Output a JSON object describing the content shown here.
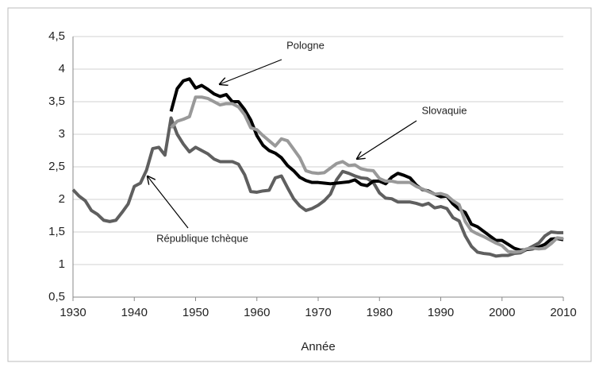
{
  "chart_data": {
    "type": "line",
    "xlabel": "Année",
    "x": [
      1930,
      1931,
      1932,
      1933,
      1934,
      1935,
      1936,
      1937,
      1938,
      1939,
      1940,
      1941,
      1942,
      1943,
      1944,
      1945,
      1946,
      1947,
      1948,
      1949,
      1950,
      1951,
      1952,
      1953,
      1954,
      1955,
      1956,
      1957,
      1958,
      1959,
      1960,
      1961,
      1962,
      1963,
      1964,
      1965,
      1966,
      1967,
      1968,
      1969,
      1970,
      1971,
      1972,
      1973,
      1974,
      1975,
      1976,
      1977,
      1978,
      1979,
      1980,
      1981,
      1982,
      1983,
      1984,
      1985,
      1986,
      1987,
      1988,
      1989,
      1990,
      1991,
      1992,
      1993,
      1994,
      1995,
      1996,
      1997,
      1998,
      1999,
      2000,
      2001,
      2002,
      2003,
      2004,
      2005,
      2006,
      2007,
      2008,
      2009,
      2010
    ],
    "series": [
      {
        "name": "République tchèque",
        "color": "#5f5f5f",
        "values": [
          2.15,
          2.05,
          1.98,
          1.83,
          1.77,
          1.68,
          1.66,
          1.68,
          1.8,
          1.93,
          2.2,
          2.25,
          2.45,
          2.78,
          2.8,
          2.68,
          3.25,
          3.0,
          2.85,
          2.73,
          2.8,
          2.75,
          2.7,
          2.62,
          2.58,
          2.58,
          2.58,
          2.54,
          2.38,
          2.12,
          2.11,
          2.13,
          2.14,
          2.33,
          2.36,
          2.18,
          2.01,
          1.9,
          1.83,
          1.86,
          1.91,
          1.98,
          2.08,
          2.3,
          2.43,
          2.4,
          2.36,
          2.33,
          2.32,
          2.26,
          2.1,
          2.02,
          2.01,
          1.96,
          1.96,
          1.96,
          1.94,
          1.91,
          1.94,
          1.87,
          1.89,
          1.86,
          1.72,
          1.67,
          1.44,
          1.28,
          1.19,
          1.17,
          1.16,
          1.13,
          1.14,
          1.14,
          1.17,
          1.18,
          1.23,
          1.28,
          1.33,
          1.44,
          1.5,
          1.49,
          1.49
        ]
      },
      {
        "name": "Pologne",
        "color": "#000000",
        "values": [
          null,
          null,
          null,
          null,
          null,
          null,
          null,
          null,
          null,
          null,
          null,
          null,
          null,
          null,
          null,
          null,
          3.35,
          3.7,
          3.82,
          3.85,
          3.71,
          3.75,
          3.69,
          3.62,
          3.58,
          3.61,
          3.5,
          3.5,
          3.38,
          3.22,
          2.98,
          2.83,
          2.75,
          2.71,
          2.64,
          2.52,
          2.44,
          2.34,
          2.29,
          2.26,
          2.26,
          2.25,
          2.24,
          2.25,
          2.26,
          2.27,
          2.3,
          2.23,
          2.21,
          2.28,
          2.28,
          2.24,
          2.34,
          2.4,
          2.37,
          2.33,
          2.22,
          2.15,
          2.13,
          2.08,
          2.04,
          2.05,
          1.93,
          1.85,
          1.8,
          1.62,
          1.58,
          1.51,
          1.44,
          1.37,
          1.37,
          1.31,
          1.25,
          1.22,
          1.23,
          1.24,
          1.27,
          1.31,
          1.39,
          1.4,
          1.38
        ]
      },
      {
        "name": "Slovaquie",
        "color": "#999999",
        "values": [
          null,
          null,
          null,
          null,
          null,
          null,
          null,
          null,
          null,
          null,
          null,
          null,
          null,
          null,
          null,
          null,
          3.1,
          3.2,
          3.23,
          3.27,
          3.57,
          3.57,
          3.55,
          3.5,
          3.45,
          3.47,
          3.47,
          3.42,
          3.3,
          3.1,
          3.07,
          2.98,
          2.9,
          2.82,
          2.93,
          2.9,
          2.77,
          2.64,
          2.44,
          2.41,
          2.4,
          2.41,
          2.48,
          2.55,
          2.58,
          2.52,
          2.53,
          2.47,
          2.45,
          2.44,
          2.32,
          2.28,
          2.28,
          2.26,
          2.26,
          2.26,
          2.2,
          2.16,
          2.12,
          2.08,
          2.09,
          2.06,
          1.98,
          1.92,
          1.66,
          1.52,
          1.47,
          1.43,
          1.38,
          1.33,
          1.29,
          1.2,
          1.19,
          1.2,
          1.24,
          1.25,
          1.24,
          1.25,
          1.32,
          1.41,
          1.4
        ]
      }
    ],
    "xlim": [
      1930,
      2010
    ],
    "xticks": [
      1930,
      1940,
      1950,
      1960,
      1970,
      1980,
      1990,
      2000,
      2010
    ],
    "ylim": [
      0.5,
      4.5
    ],
    "yticks": [
      {
        "value": 0.5,
        "label": "0,5"
      },
      1,
      {
        "value": 1.5,
        "label": "1,5"
      },
      2,
      {
        "value": 2.5,
        "label": "2,5"
      },
      3,
      {
        "value": 3.5,
        "label": "3,5"
      },
      4,
      {
        "value": 4.5,
        "label": "4,5"
      }
    ],
    "grid": true,
    "annotations": [
      "Pologne",
      "Slovaquie",
      "République tchèque"
    ]
  }
}
